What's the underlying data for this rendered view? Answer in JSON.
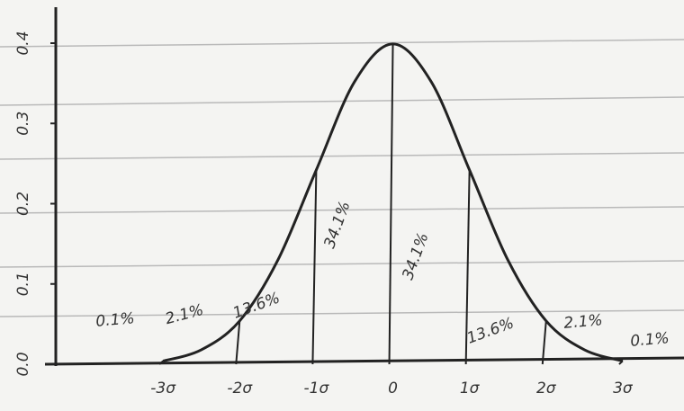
{
  "chart_data": {
    "type": "area",
    "x": [
      -3,
      -2.5,
      -2,
      -1.5,
      -1,
      -0.5,
      0,
      0.5,
      1,
      1.5,
      2,
      2.5,
      3
    ],
    "values": [
      0.004,
      0.018,
      0.054,
      0.13,
      0.242,
      0.352,
      0.399,
      0.352,
      0.242,
      0.13,
      0.054,
      0.018,
      0.004
    ],
    "color": "#222222",
    "xlim": [
      -4.4,
      3.8
    ],
    "ylim": [
      0,
      0.4
    ],
    "xticks": [
      {
        "value": -3,
        "label": "-3σ"
      },
      {
        "value": -2,
        "label": "-2σ"
      },
      {
        "value": -1,
        "label": "-1σ"
      },
      0,
      {
        "value": 1,
        "label": "1σ"
      },
      {
        "value": 2,
        "label": "2σ"
      },
      {
        "value": 3,
        "label": "3σ"
      }
    ],
    "yticks": [
      {
        "value": 0,
        "label": "0.0"
      },
      0.1,
      0.2,
      0.3,
      0.4
    ],
    "regions": {
      "values": [
        0.1,
        2.1,
        13.6,
        34.1,
        34.1,
        13.6,
        2.1,
        0.1
      ],
      "value_labels": [
        "0.1%",
        "2.1%",
        "13.6%",
        "34.1%",
        "34.1%",
        "13.6%",
        "2.1%",
        "0.1%"
      ]
    }
  }
}
